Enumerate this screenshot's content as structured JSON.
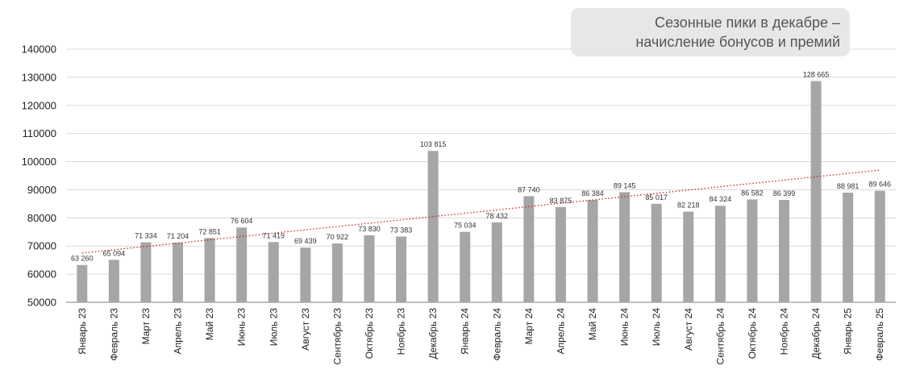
{
  "chart_data": {
    "type": "bar",
    "title": "",
    "xlabel": "",
    "ylabel": "",
    "ylim": [
      50000,
      140000
    ],
    "yticks": [
      "50000",
      "60000",
      "70000",
      "80000",
      "90000",
      "100000",
      "110000",
      "120000",
      "130000",
      "140000"
    ],
    "grid": true,
    "categories": [
      "Январь 23",
      "Февраль 23",
      "Март 23",
      "Апрель 23",
      "Май 23",
      "Июнь 23",
      "Июль 23",
      "Август 23",
      "Сентябрь 23",
      "Октябрь 23",
      "Ноябрь 23",
      "Декабрь 23",
      "Январь 24",
      "Февраль 24",
      "Март 24",
      "Апрель 24",
      "Май 24",
      "Июнь 24",
      "Июль 24",
      "Август 24",
      "Сентябрь 24",
      "Октябрь 24",
      "Ноябрь 24",
      "Декабрь 24",
      "Январь 25",
      "Февраль 25"
    ],
    "values": [
      63260,
      65094,
      71334,
      71204,
      72851,
      76604,
      71419,
      69439,
      70922,
      73830,
      73383,
      103815,
      75034,
      78432,
      87740,
      83875,
      86384,
      89145,
      85017,
      82218,
      84324,
      86582,
      86399,
      128665,
      88981,
      89646
    ],
    "labels": [
      "63 260",
      "65 094",
      "71 334",
      "71 204",
      "72 851",
      "76 604",
      "71 419",
      "69 439",
      "70 922",
      "73 830",
      "73 383",
      "103 815",
      "75 034",
      "78 432",
      "87 740",
      "83 875",
      "86 384",
      "89 145",
      "85 017",
      "82 218",
      "84 324",
      "86 582",
      "86 399",
      "128 665",
      "88 981",
      "89 646"
    ],
    "trendline": {
      "type": "linear",
      "start": 67500,
      "end": 97000
    }
  },
  "colors": {
    "bar": "#a6a6a6",
    "trend": "#d81e2c",
    "grid": "#d9d9d9",
    "axis": "#7f7f7f"
  },
  "callout": {
    "line1": "Сезонные пики в декабре –",
    "line2": "начисление бонусов и премий"
  }
}
